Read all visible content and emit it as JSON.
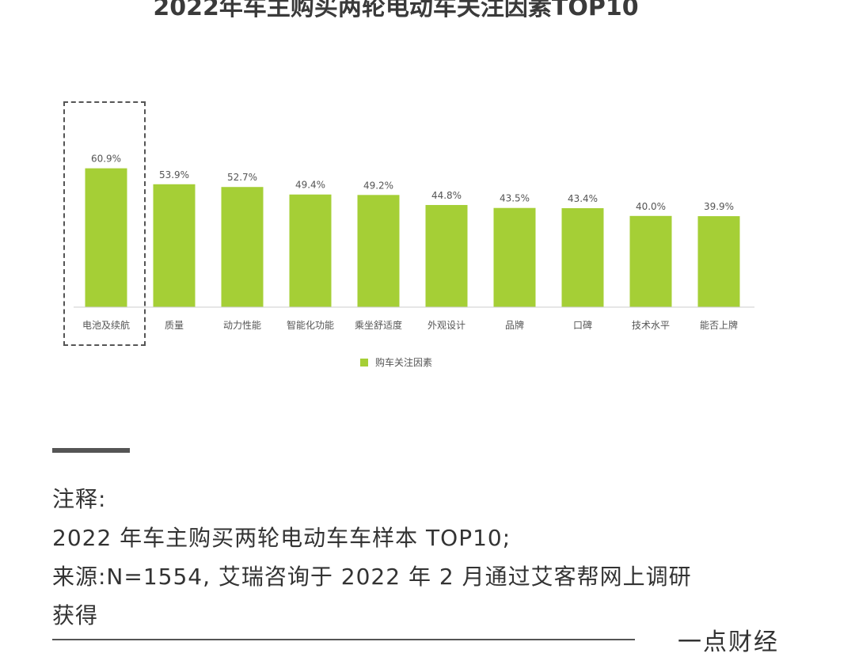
{
  "chart_data": {
    "type": "bar",
    "title": "2022年车主购买两轮电动车关注因素TOP10",
    "categories": [
      "电池及续航",
      "质量",
      "动力性能",
      "智能化功能",
      "乘坐舒适度",
      "外观设计",
      "品牌",
      "口碑",
      "技术水平",
      "能否上牌"
    ],
    "series": [
      {
        "name": "购车关注因素",
        "values": [
          60.9,
          53.9,
          52.7,
          49.4,
          49.2,
          44.8,
          43.5,
          43.4,
          40.0,
          39.9
        ],
        "labels": [
          "60.9%",
          "53.9%",
          "52.7%",
          "49.4%",
          "49.2%",
          "44.8%",
          "43.5%",
          "43.4%",
          "40.0%",
          "39.9%"
        ]
      }
    ],
    "ylim": [
      0,
      100
    ],
    "grid": false,
    "legend_position": "bottom",
    "highlighted_category": "电池及续航",
    "bar_color": "#a5cf36"
  },
  "notes": {
    "heading": "注释:",
    "line1": "2022 年车主购买两轮电动车车样本 TOP10;",
    "line2": "来源:N=1554, 艾瑞咨询于 2022 年 2 月通过艾客帮网上调研",
    "line3": "获得"
  },
  "brand": "一点财经"
}
